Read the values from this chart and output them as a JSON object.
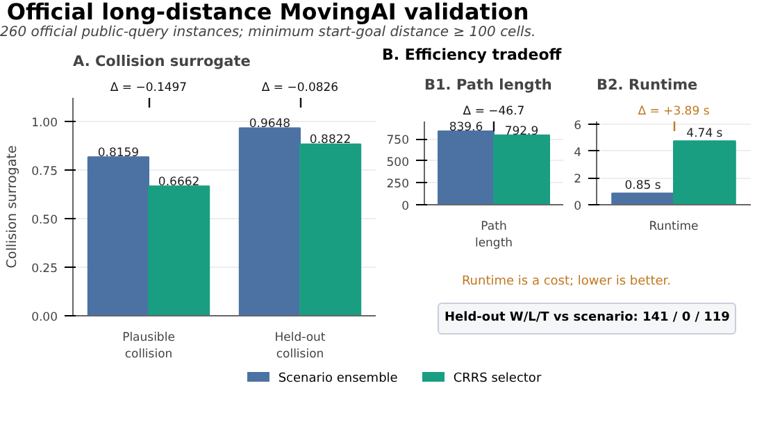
{
  "chart_data": [
    {
      "type": "other",
      "title": "Official long-distance MovingAI validation",
      "subtitle": "260 official public-query instances; minimum start-goal distance ≥ 100 cells."
    },
    {
      "type": "bar",
      "title": "A. Collision surrogate",
      "ylabel": "Collision surrogate",
      "categories": [
        "Plausible\ncollision",
        "Held-out\ncollision"
      ],
      "series": [
        {
          "name": "Scenario ensemble",
          "color": "#4c72a4",
          "values": [
            0.8159,
            0.9648
          ]
        },
        {
          "name": "CRRS selector",
          "color": "#1a9e82",
          "values": [
            0.6662,
            0.8822
          ]
        }
      ],
      "ylim": [
        0,
        1.12
      ],
      "yticks": [
        {
          "value": 0,
          "label": "0.00"
        },
        {
          "value": 0.25,
          "label": "0.25"
        },
        {
          "value": 0.5,
          "label": "0.50"
        },
        {
          "value": 0.75,
          "label": "0.75"
        },
        {
          "value": 1,
          "label": "1.00"
        }
      ],
      "grid": "y",
      "data_labels": true,
      "legend": "bottom",
      "annotations": [
        "Δ = −0.1497",
        "Δ = −0.0826"
      ]
    },
    {
      "type": "other",
      "title": "B. Efficiency tradeoff"
    },
    {
      "type": "bar",
      "title": "B1. Path length",
      "categories": [
        "Path\nlength"
      ],
      "series": [
        {
          "color": "#4c72a4",
          "values": [
            839.6
          ]
        },
        {
          "color": "#1a9e82",
          "values": [
            792.9
          ]
        }
      ],
      "ylim": [
        0,
        950
      ],
      "yticks": [
        0,
        250,
        500,
        750
      ],
      "grid": "y",
      "data_labels": true,
      "annotations": [
        "Δ = −46.7"
      ]
    },
    {
      "type": "bar",
      "title": "B2. Runtime",
      "categories": [
        "Runtime"
      ],
      "series": [
        {
          "color": "#4c72a4",
          "values": [
            0.85
          ],
          "value_labels": [
            "0.85 s"
          ]
        },
        {
          "color": "#1a9e82",
          "values": [
            4.74
          ],
          "value_labels": [
            "4.74 s"
          ]
        }
      ],
      "ylim": [
        0,
        6.2
      ],
      "yticks": [
        0,
        2,
        4,
        6
      ],
      "grid": "y",
      "annotations": [
        "Δ = +3.89 s"
      ]
    },
    {
      "type": "other",
      "annotations": [
        "Runtime is a cost; lower is better.",
        "Held-out W/L/T vs scenario: 141 / 0 / 119"
      ]
    }
  ]
}
